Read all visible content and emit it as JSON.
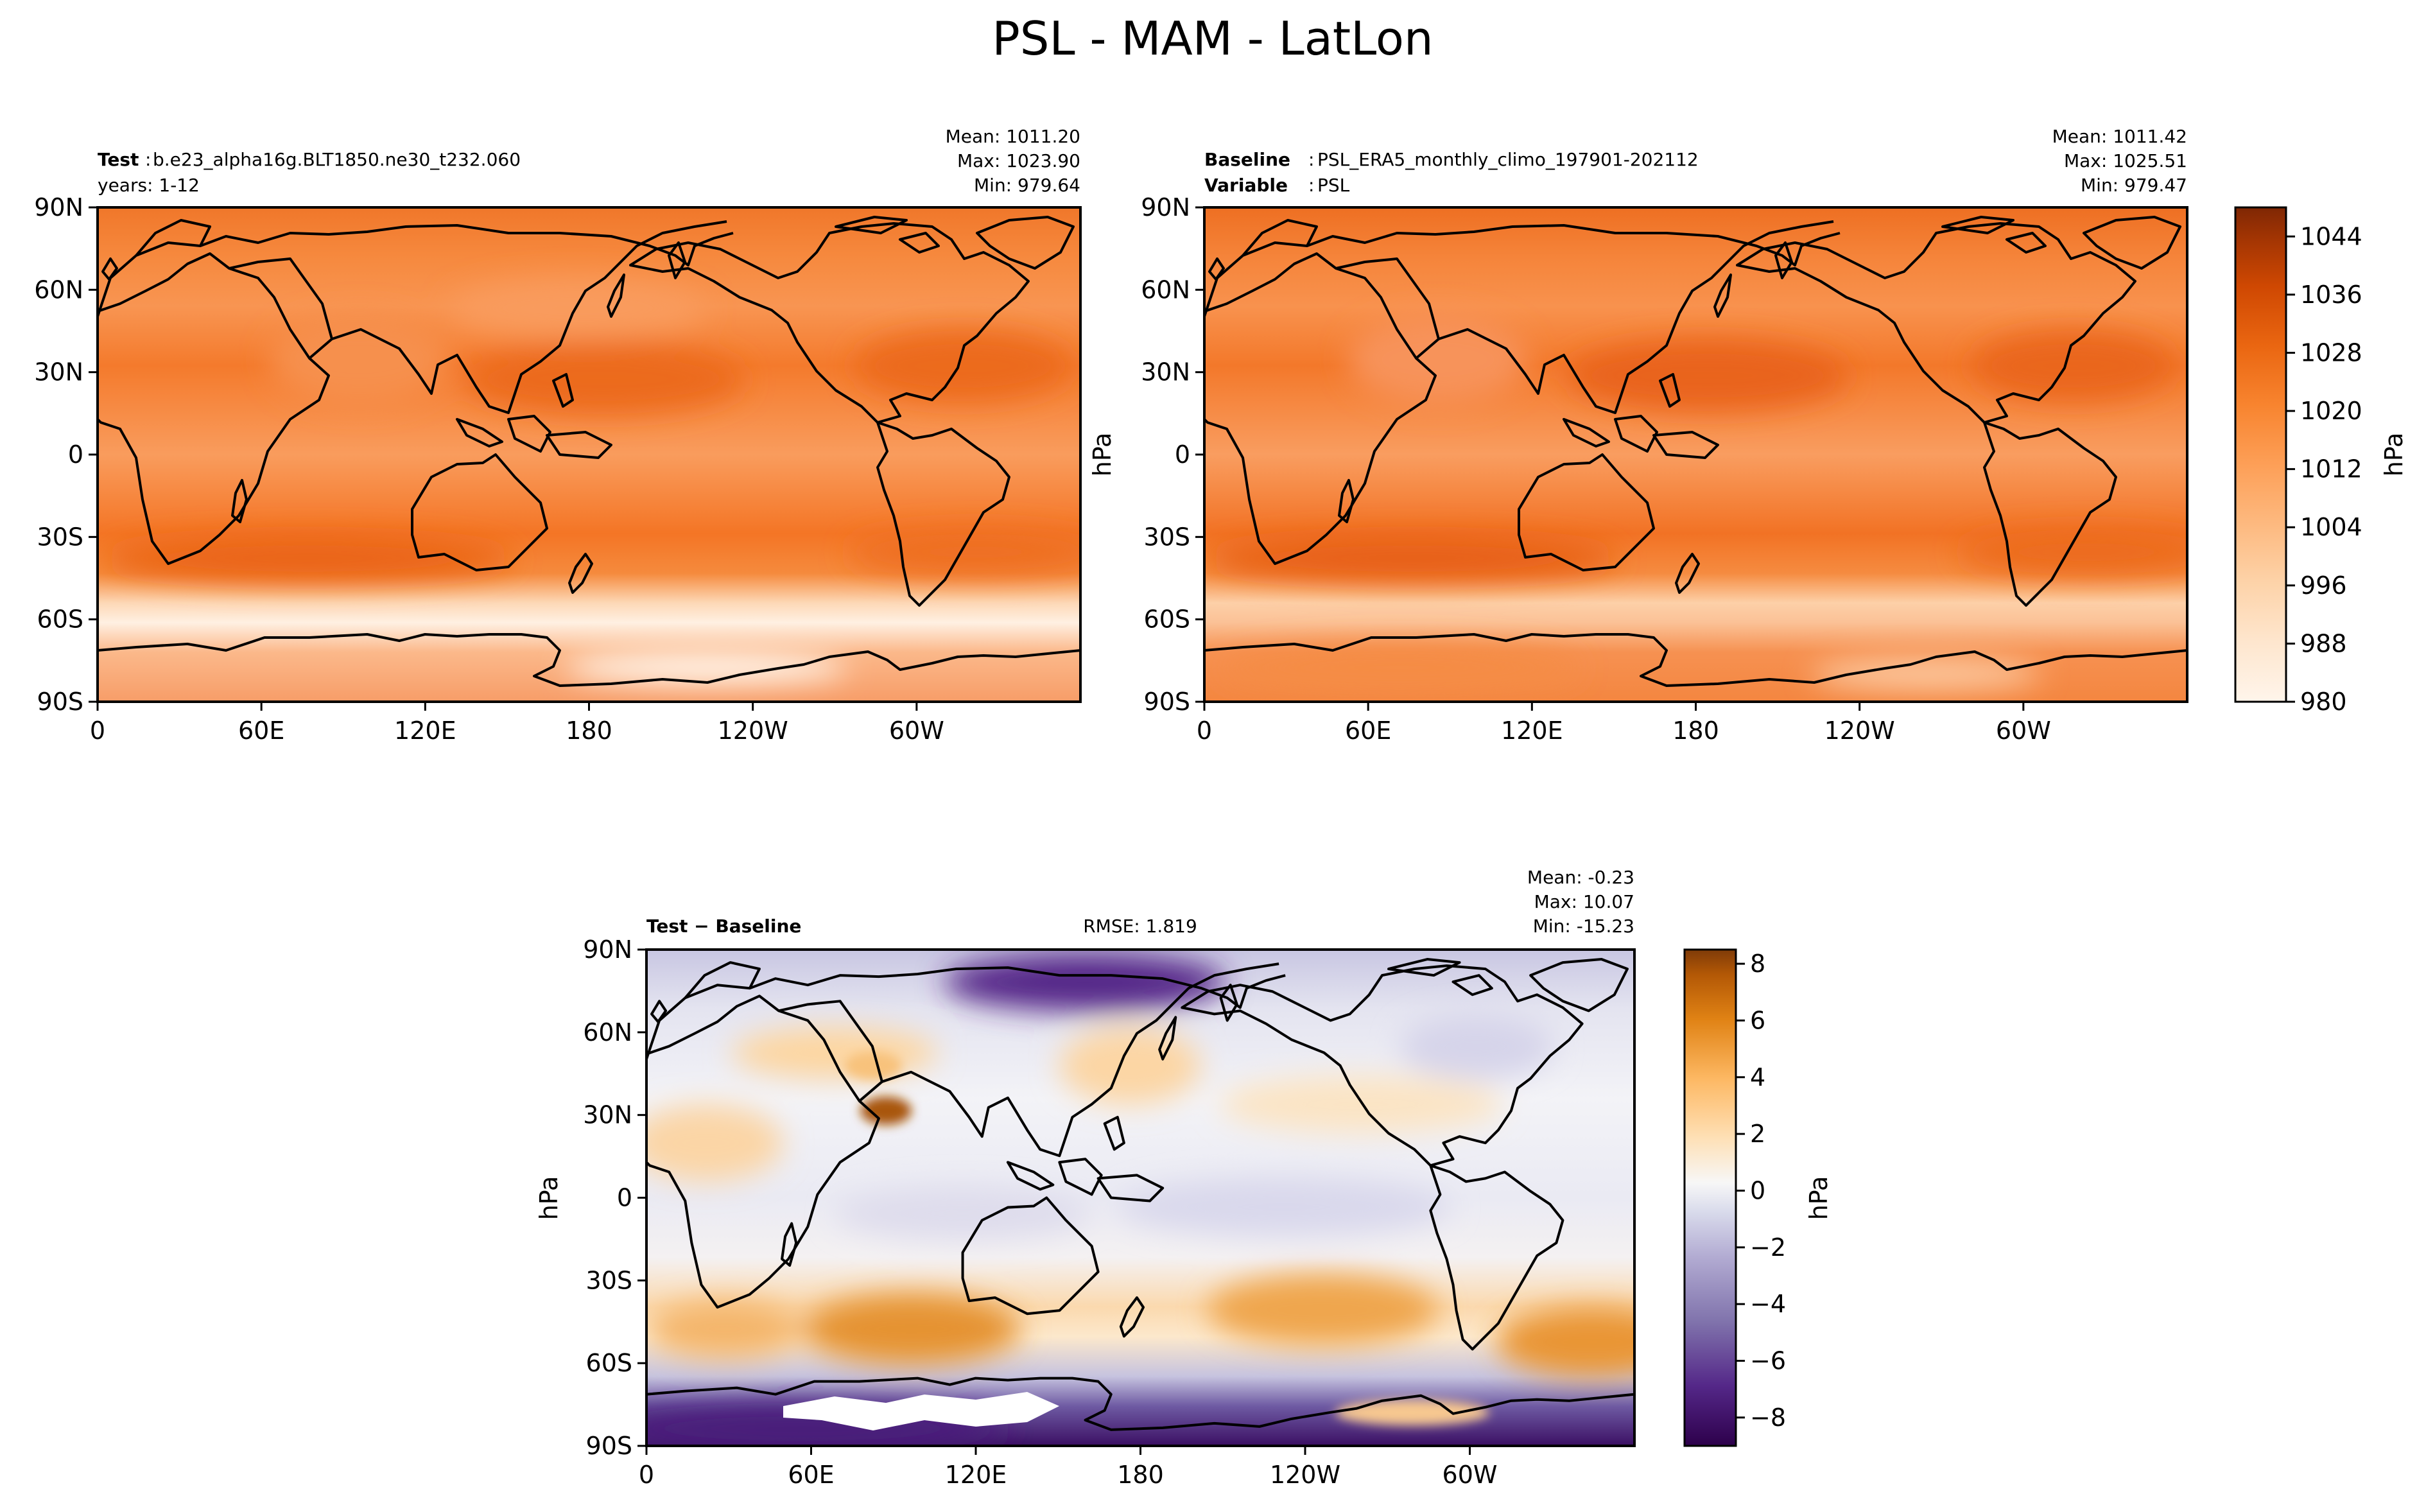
{
  "figure_title": "PSL - MAM - LatLon",
  "panels": {
    "test": {
      "label": "Test",
      "name": "b.e23_alpha16g.BLT1850.ne30_t232.060",
      "years": "years: 1-12",
      "mean": "Mean: 1011.20",
      "max": "Max: 1023.90",
      "min": "Min: 979.64"
    },
    "baseline": {
      "label": "Baseline",
      "name": "PSL_ERA5_monthly_climo_197901-202112",
      "variable_label": "Variable",
      "variable": "PSL",
      "mean": "Mean: 1011.42",
      "max": "Max: 1025.51",
      "min": "Min: 979.47",
      "unit": "hPa"
    },
    "diff": {
      "label": "Test − Baseline",
      "rmse": "RMSE: 1.819",
      "mean": "Mean: -0.23",
      "max": "Max: 10.07",
      "min": "Min: -15.23",
      "unit": "hPa"
    }
  },
  "colorbars": {
    "main": {
      "unit": "hPa",
      "ticks": [
        "1044",
        "1036",
        "1028",
        "1020",
        "1012",
        "1004",
        "996",
        "988",
        "980"
      ]
    },
    "diff": {
      "unit": "hPa",
      "ticks": [
        "8",
        "6",
        "4",
        "2",
        "0",
        "−2",
        "−4",
        "−6",
        "−8"
      ]
    }
  },
  "colors": {
    "oranges": [
      "#fff5eb",
      "#fee8d3",
      "#fdd8b3",
      "#fdc28c",
      "#fda762",
      "#fd8c3b",
      "#f57622",
      "#e5600e",
      "#d14501",
      "#b53a02",
      "#952e03",
      "#7f2704"
    ],
    "puor": [
      "#2d004b",
      "#542788",
      "#8073ac",
      "#b2abd2",
      "#d8daeb",
      "#f7f7f7",
      "#fee0b6",
      "#fdb863",
      "#e08214",
      "#b35806",
      "#7f3b08"
    ]
  },
  "chart_data": [
    {
      "type": "heatmap",
      "title": "Test",
      "xlabel": "",
      "ylabel": "",
      "x_ticks": [
        "0",
        "60E",
        "120E",
        "180",
        "120W",
        "60W"
      ],
      "y_ticks": [
        "90N",
        "60N",
        "30N",
        "0",
        "30S",
        "60S",
        "90S"
      ],
      "xlim": [
        0,
        360
      ],
      "ylim": [
        -90,
        90
      ],
      "color_range": [
        980,
        1048
      ],
      "stats": {
        "mean": 1011.2,
        "max": 1023.9,
        "min": 979.64
      }
    },
    {
      "type": "heatmap",
      "title": "Baseline",
      "xlabel": "",
      "ylabel": "hPa",
      "x_ticks": [
        "0",
        "60E",
        "120E",
        "180",
        "120W",
        "60W"
      ],
      "y_ticks": [
        "90N",
        "60N",
        "30N",
        "0",
        "30S",
        "60S",
        "90S"
      ],
      "xlim": [
        0,
        360
      ],
      "ylim": [
        -90,
        90
      ],
      "color_range": [
        980,
        1048
      ],
      "stats": {
        "mean": 1011.42,
        "max": 1025.51,
        "min": 979.47
      }
    },
    {
      "type": "heatmap",
      "title": "Test − Baseline",
      "xlabel": "",
      "ylabel": "hPa",
      "x_ticks": [
        "0",
        "60E",
        "120E",
        "180",
        "120W",
        "60W"
      ],
      "y_ticks": [
        "90N",
        "60N",
        "30N",
        "0",
        "30S",
        "60S",
        "90S"
      ],
      "xlim": [
        0,
        360
      ],
      "ylim": [
        -90,
        90
      ],
      "color_range": [
        -9,
        8.5
      ],
      "stats": {
        "mean": -0.23,
        "max": 10.07,
        "min": -15.23,
        "rmse": 1.819
      }
    }
  ]
}
